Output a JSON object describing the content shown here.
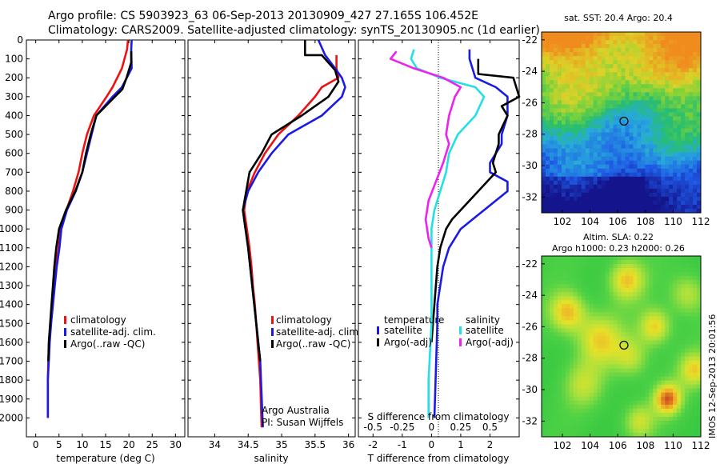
{
  "header": {
    "line1": "Argo profile: CS 5903923_63 06-Sep-2013 20130909_427 27.165S 106.452E",
    "line2": "Climatology: CARS2009. Satellite-adjusted climatology: synTS_20130905.nc (1d earlier)"
  },
  "side_label": "IMOS 12-Sep-2013 20:01:56",
  "colors": {
    "climatology": "#ee1111",
    "satellite": "#1a1ae6",
    "argo": "#000000",
    "sat_salinity": "#22e0e6",
    "argo_salinity_adj": "#ee22ee"
  },
  "chart_data": [
    {
      "type": "line",
      "xlabel": "temperature (deg C)",
      "xlim": [
        -2,
        32
      ],
      "xticks": [
        0,
        5,
        10,
        15,
        20,
        25,
        30
      ],
      "ylim": [
        2100,
        0
      ],
      "yticks": [
        0,
        100,
        200,
        300,
        400,
        500,
        600,
        700,
        800,
        900,
        1000,
        1100,
        1200,
        1300,
        1400,
        1500,
        1600,
        1700,
        1800,
        1900,
        2000
      ],
      "legend": [
        "climatology",
        "satellite-adj. clim.",
        "Argo(..raw -QC)"
      ],
      "series": [
        {
          "name": "climatology",
          "color": "#ee1111",
          "x": [
            19.8,
            19.6,
            18.5,
            16.5,
            15.2,
            12.5,
            11,
            10,
            9.2,
            8,
            6.6,
            5.2,
            4.9,
            4.3,
            4,
            3.6,
            3.2,
            2.9,
            2.7,
            2.6,
            2.6
          ],
          "y": [
            0,
            50,
            150,
            250,
            300,
            400,
            500,
            600,
            700,
            800,
            900,
            1000,
            1100,
            1200,
            1300,
            1400,
            1500,
            1600,
            1700,
            1800,
            2000
          ]
        },
        {
          "name": "satellite-adj. clim.",
          "color": "#1a1ae6",
          "x": [
            20.6,
            20.5,
            20.6,
            18.5,
            16.5,
            13,
            12,
            11,
            10,
            8.6,
            6.7,
            5.5,
            5.1,
            4.5,
            4.1,
            3.7,
            3.3,
            3.0,
            2.8,
            2.6,
            2.6
          ],
          "y": [
            0,
            50,
            150,
            250,
            300,
            400,
            500,
            600,
            700,
            800,
            900,
            1000,
            1100,
            1200,
            1300,
            1400,
            1500,
            1600,
            1700,
            1800,
            2000
          ]
        },
        {
          "name": "Argo(..raw -QC)",
          "color": "#000000",
          "x": [
            20.5,
            20.5,
            19.5,
            18.6,
            17,
            13,
            11.8,
            10.8,
            10,
            8.5,
            6.5,
            5,
            4.4,
            4,
            3.7,
            3.4,
            3.1,
            2.8,
            2.7
          ],
          "y": [
            60,
            120,
            200,
            260,
            300,
            400,
            500,
            600,
            700,
            800,
            900,
            1000,
            1100,
            1200,
            1300,
            1400,
            1500,
            1600,
            1700
          ]
        }
      ]
    },
    {
      "type": "line",
      "xlabel": "salinity",
      "xlim": [
        33.6,
        36.1
      ],
      "xticks": [
        34,
        34.5,
        35,
        35.5,
        36
      ],
      "ylim": [
        2100,
        0
      ],
      "yticks": [
        0,
        100,
        200,
        300,
        400,
        500,
        600,
        700,
        800,
        900,
        1000,
        1100,
        1200,
        1300,
        1400,
        1500,
        1600,
        1700,
        1800,
        1900,
        2000
      ],
      "legend": [
        "climatology",
        "satellite-adj. clim.",
        "Argo(..raw -QC)"
      ],
      "annotation": [
        "Argo Australia",
        "PI: Susan Wijffels"
      ],
      "series": [
        {
          "name": "climatology",
          "color": "#ee1111",
          "x": [
            35.82,
            35.82,
            35.85,
            35.6,
            35.5,
            35.25,
            34.95,
            34.75,
            34.6,
            34.48,
            34.44,
            34.48,
            34.52,
            34.55,
            34.57,
            34.6,
            34.62,
            34.64,
            34.66,
            34.68,
            34.7
          ],
          "y": [
            80,
            150,
            200,
            250,
            300,
            400,
            500,
            600,
            700,
            800,
            900,
            1000,
            1100,
            1200,
            1300,
            1400,
            1500,
            1600,
            1700,
            1800,
            2050
          ]
        },
        {
          "name": "satellite-adj. clim.",
          "color": "#1a1ae6",
          "x": [
            35.55,
            35.65,
            35.8,
            35.9,
            35.95,
            35.9,
            35.6,
            35.1,
            34.85,
            34.65,
            34.5,
            34.42,
            34.46,
            34.5,
            34.53,
            34.56,
            34.59,
            34.62,
            34.65,
            34.68,
            34.72
          ],
          "y": [
            0,
            80,
            150,
            200,
            250,
            300,
            400,
            500,
            600,
            700,
            800,
            900,
            1000,
            1100,
            1200,
            1300,
            1400,
            1500,
            1600,
            1700,
            2050
          ]
        },
        {
          "name": "Argo(..raw -QC)",
          "color": "#000000",
          "x": [
            35.35,
            35.35,
            35.6,
            35.8,
            35.85,
            35.7,
            35.5,
            35.3,
            34.85,
            34.7,
            34.52,
            34.42,
            34.46,
            34.5,
            34.53,
            34.56,
            34.59,
            34.62,
            34.65,
            34.68
          ],
          "y": [
            0,
            80,
            80,
            160,
            220,
            300,
            350,
            400,
            500,
            600,
            700,
            900,
            1000,
            1100,
            1200,
            1300,
            1400,
            1500,
            1600,
            1700
          ]
        }
      ]
    },
    {
      "type": "line",
      "xlabel": "T difference from climatology",
      "x2label": "S difference from climatology",
      "xlim": [
        -2.5,
        3
      ],
      "xticks": [
        -2,
        -1,
        0,
        1,
        2
      ],
      "x2ticks": [
        "-0.5",
        "-0.25",
        "0",
        "0.25",
        "0.5"
      ],
      "ylim": [
        2100,
        0
      ],
      "yticks": [
        0,
        100,
        200,
        300,
        400,
        500,
        600,
        700,
        800,
        900,
        1000,
        1100,
        1200,
        1300,
        1400,
        1500,
        1600,
        1700,
        1800,
        1900,
        2000
      ],
      "legend_headers": [
        "temperature",
        "salinity"
      ],
      "legend": [
        "satellite",
        "Argo(-adj)",
        "satellite",
        "Argo(-adj)"
      ],
      "series": [
        {
          "name": "satellite",
          "color": "#1a1ae6",
          "x": [
            1.3,
            1.3,
            1.5,
            2.2,
            2.6,
            2.6,
            2.4,
            2.4,
            2.0,
            2.0,
            2.6,
            2.6,
            2.2,
            1.4,
            1.0,
            0.6,
            0.4,
            0.3,
            0.2,
            0.2,
            0.1
          ],
          "y": [
            50,
            100,
            200,
            250,
            300,
            400,
            500,
            550,
            650,
            700,
            750,
            800,
            850,
            950,
            1000,
            1100,
            1200,
            1300,
            1400,
            1500,
            2000
          ]
        },
        {
          "name": "Argo(-adj)",
          "color": "#000000",
          "x": [
            1.6,
            1.6,
            2.8,
            3.0,
            2.4,
            2.6,
            2.3,
            2.3,
            2.1,
            2.2,
            1.6,
            0.7,
            0.5,
            0.3,
            0.2,
            0.1,
            0.0
          ],
          "y": [
            100,
            180,
            200,
            300,
            350,
            400,
            500,
            550,
            650,
            700,
            800,
            950,
            1000,
            1100,
            1200,
            1400,
            1600
          ]
        },
        {
          "name": "satellite",
          "color": "#22e0e6",
          "x": [
            -0.6,
            -0.7,
            -0.5,
            0.3,
            1.5,
            1.8,
            1.5,
            0.9,
            0.6,
            0.5,
            0.3,
            0.1,
            0.0,
            0.0,
            0.0,
            -0.1,
            -0.1
          ],
          "y": [
            50,
            100,
            150,
            200,
            250,
            300,
            400,
            500,
            600,
            700,
            800,
            900,
            1000,
            1200,
            1500,
            1800,
            2000
          ]
        },
        {
          "name": "Argo(-adj)",
          "color": "#ee22ee",
          "x": [
            -1.2,
            -1.4,
            -0.6,
            0.4,
            1.0,
            0.8,
            0.6,
            0.5,
            0.6,
            0.4,
            -0.1,
            -0.2,
            -0.1,
            0.0
          ],
          "y": [
            60,
            100,
            150,
            200,
            250,
            300,
            400,
            500,
            550,
            650,
            850,
            950,
            1050,
            1100
          ]
        }
      ]
    },
    {
      "type": "heatmap",
      "title": "sat. SST: 20.4 Argo: 20.4",
      "xlim": [
        100.5,
        112
      ],
      "xticks": [
        "102",
        "104",
        "106",
        "108",
        "110",
        "112"
      ],
      "ylim": [
        -33,
        -21.5
      ],
      "yticks": [
        "-22",
        "-24",
        "-26",
        "-28",
        "-30",
        "-32"
      ],
      "marker": {
        "lon": 106.45,
        "lat": -27.17
      }
    },
    {
      "type": "heatmap",
      "title": "Altim. SLA: 0.22",
      "subtitle": "Argo h1000: 0.23 h2000: 0.26",
      "xlim": [
        100.5,
        112
      ],
      "xticks": [
        "102",
        "104",
        "106",
        "108",
        "110",
        "112"
      ],
      "ylim": [
        -33,
        -21.5
      ],
      "yticks": [
        "-22",
        "-24",
        "-26",
        "-28",
        "-30",
        "-32"
      ],
      "marker": {
        "lon": 106.45,
        "lat": -27.17
      }
    }
  ]
}
